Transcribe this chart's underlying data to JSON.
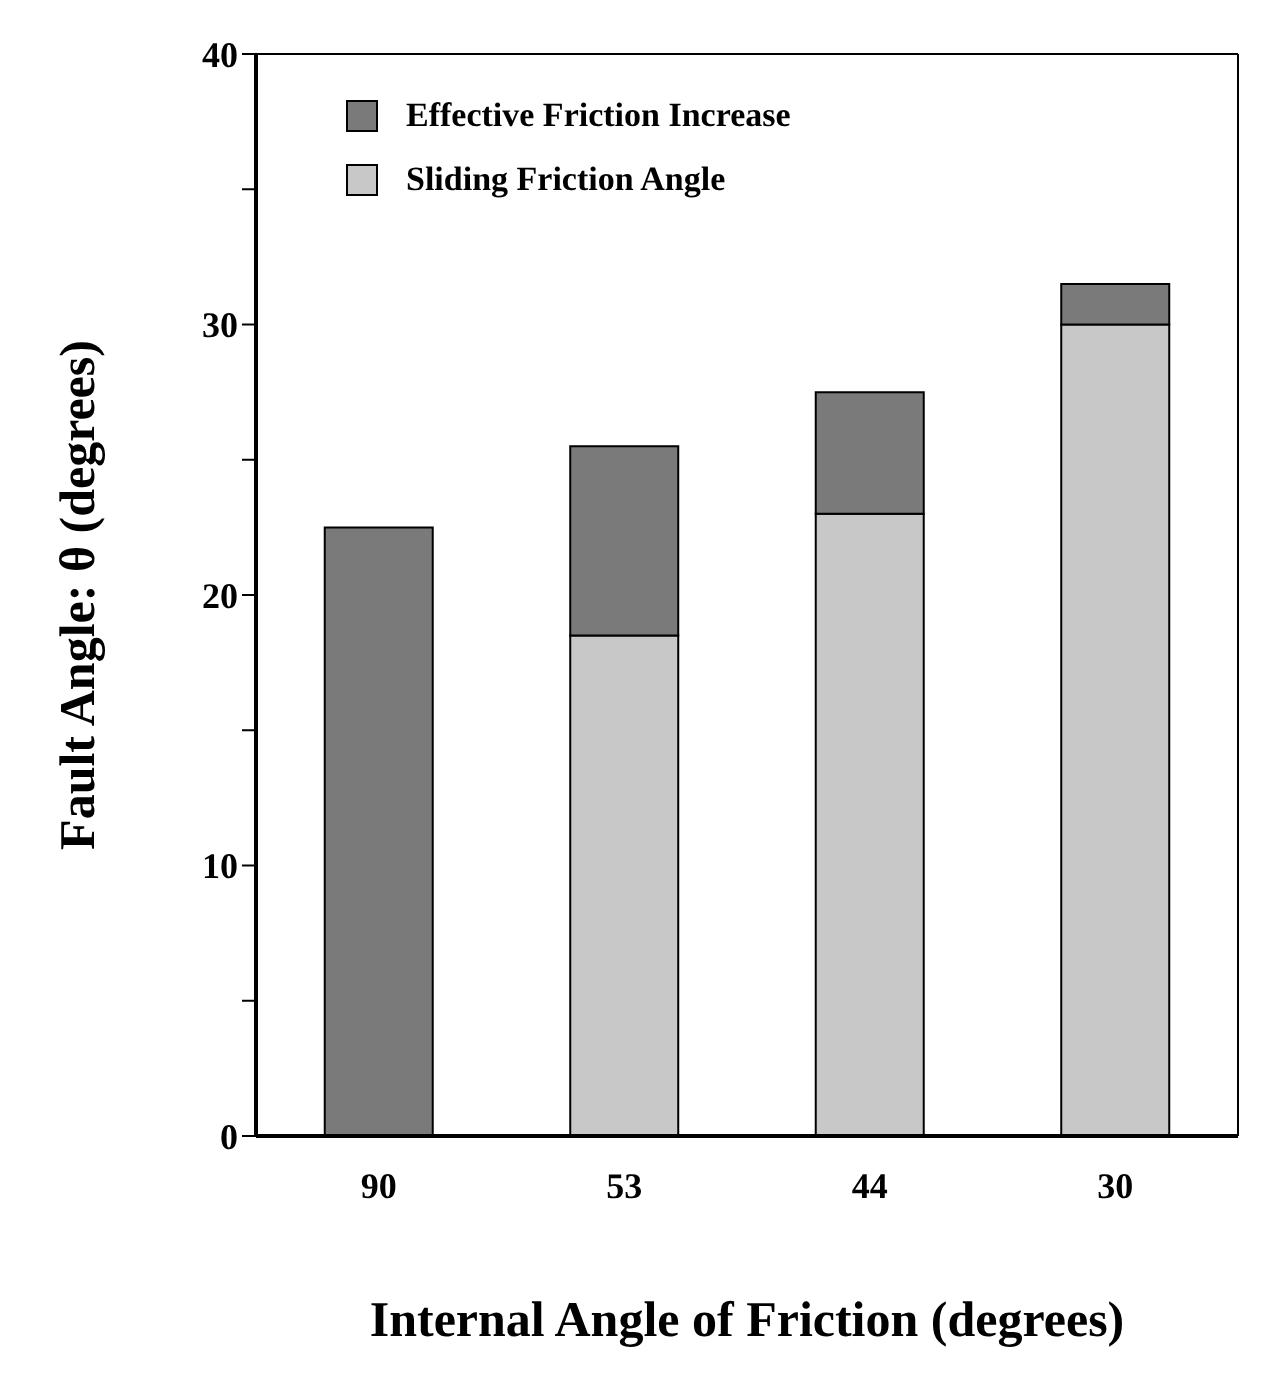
{
  "chart_data": {
    "type": "bar",
    "xlabel": "Internal Angle of Friction (degrees)",
    "ylabel": "Fault Angle:  θ  (degrees)",
    "categories": [
      "90",
      "53",
      "44",
      "30"
    ],
    "series": [
      {
        "name": "Sliding Friction Angle",
        "color": "#c8c8c8",
        "values": [
          0,
          18.5,
          23,
          30
        ]
      },
      {
        "name": "Effective Friction Increase",
        "color": "#7a7a7a",
        "values": [
          22.5,
          7,
          4.5,
          1.5
        ]
      }
    ],
    "stacked": true,
    "ylim": [
      0,
      40
    ],
    "yticks": [
      0,
      {
        "value": 5,
        "label": null
      },
      10,
      {
        "value": 15,
        "label": null
      },
      20,
      {
        "value": 25,
        "label": null
      },
      30,
      {
        "value": 35,
        "label": null
      },
      40
    ],
    "grid": false,
    "legend": "top left"
  }
}
